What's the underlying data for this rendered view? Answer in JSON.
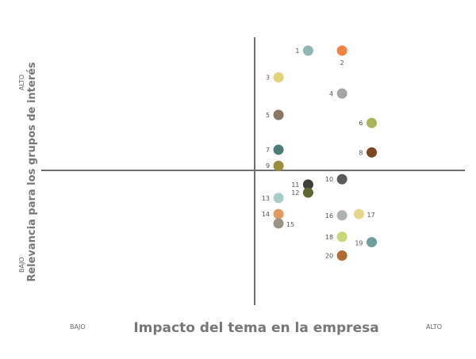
{
  "chart_data": {
    "type": "scatter",
    "xlabel": "Impacto del tema en la empresa",
    "ylabel": "Relevancia para los grupos de interés",
    "x_low_label": "BAJO",
    "x_high_label": "ALTO",
    "y_low_label": "BAJO",
    "y_high_label": "ALTO",
    "xlim": [
      0,
      10
    ],
    "ylim": [
      0,
      10
    ],
    "grid": false,
    "legend": "none",
    "points": [
      {
        "label": "1",
        "x": 6.3,
        "y": 9.5,
        "color": "#8fb5b4"
      },
      {
        "label": "2",
        "x": 7.1,
        "y": 9.5,
        "color": "#f08342"
      },
      {
        "label": "3",
        "x": 5.6,
        "y": 8.5,
        "color": "#e2d27a"
      },
      {
        "label": "4",
        "x": 7.1,
        "y": 7.9,
        "color": "#a5a5a5"
      },
      {
        "label": "5",
        "x": 5.6,
        "y": 7.1,
        "color": "#8a7665"
      },
      {
        "label": "6",
        "x": 7.8,
        "y": 6.8,
        "color": "#a9b35a"
      },
      {
        "label": "7",
        "x": 5.6,
        "y": 5.8,
        "color": "#4d7b78"
      },
      {
        "label": "8",
        "x": 7.8,
        "y": 5.7,
        "color": "#7a4722"
      },
      {
        "label": "9",
        "x": 5.6,
        "y": 5.2,
        "color": "#9c8d3c"
      },
      {
        "label": "10",
        "x": 7.1,
        "y": 4.7,
        "color": "#5b5b5b"
      },
      {
        "label": "11",
        "x": 6.3,
        "y": 4.5,
        "color": "#3f3f3a"
      },
      {
        "label": "12",
        "x": 6.3,
        "y": 4.2,
        "color": "#5e6530"
      },
      {
        "label": "13",
        "x": 5.6,
        "y": 4.0,
        "color": "#a9cbca"
      },
      {
        "label": "14",
        "x": 5.6,
        "y": 3.4,
        "color": "#e19a62"
      },
      {
        "label": "15",
        "x": 5.6,
        "y": 3.05,
        "color": "#9b9484"
      },
      {
        "label": "16",
        "x": 7.1,
        "y": 3.35,
        "color": "#b1b1b1"
      },
      {
        "label": "17",
        "x": 7.5,
        "y": 3.4,
        "color": "#e6d68c"
      },
      {
        "label": "18",
        "x": 7.1,
        "y": 2.55,
        "color": "#c6d77a"
      },
      {
        "label": "19",
        "x": 7.8,
        "y": 2.35,
        "color": "#6f9d9b"
      },
      {
        "label": "20",
        "x": 7.1,
        "y": 1.85,
        "color": "#b06a32"
      }
    ]
  }
}
